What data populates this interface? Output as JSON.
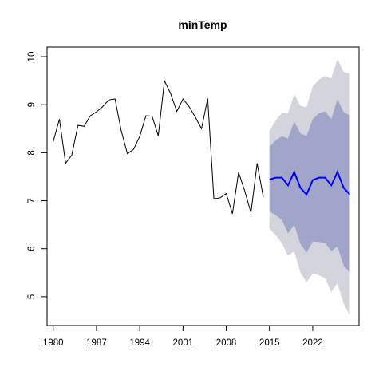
{
  "chart_data": {
    "type": "line",
    "title": "minTemp",
    "xlabel": "",
    "ylabel": "",
    "xlim": [
      1979,
      2029.5
    ],
    "ylim": [
      4.4,
      10.2
    ],
    "x_ticks": [
      1980,
      1987,
      1994,
      2001,
      2008,
      2015,
      2022
    ],
    "y_ticks": [
      5,
      6,
      7,
      8,
      9,
      10
    ],
    "grid": false,
    "colors": {
      "history": "#000000",
      "forecast": "#0000ff",
      "band_outer": "#d4d4dc",
      "band_inner": "#a2a5ca"
    },
    "history": {
      "x": [
        1980,
        1981,
        1982,
        1983,
        1984,
        1985,
        1986,
        1987,
        1988,
        1989,
        1990,
        1991,
        1992,
        1993,
        1994,
        1995,
        1996,
        1997,
        1998,
        1999,
        2000,
        2001,
        2002,
        2003,
        2004,
        2005,
        2006,
        2007,
        2008,
        2009,
        2010,
        2011,
        2012,
        2013,
        2014
      ],
      "y": [
        8.23,
        8.7,
        7.78,
        7.95,
        8.57,
        8.55,
        8.77,
        8.85,
        8.96,
        9.1,
        9.12,
        8.46,
        7.98,
        8.07,
        8.34,
        8.77,
        8.76,
        8.35,
        9.5,
        9.23,
        8.86,
        9.12,
        8.96,
        8.74,
        8.5,
        9.13,
        7.04,
        7.06,
        7.15,
        6.73,
        7.59,
        7.2,
        6.75,
        7.78,
        7.07
      ]
    },
    "forecast": {
      "x": [
        2015,
        2016,
        2017,
        2018,
        2019,
        2020,
        2021,
        2022,
        2023,
        2024,
        2025,
        2026,
        2027,
        2028
      ],
      "y": [
        7.44,
        7.48,
        7.48,
        7.32,
        7.6,
        7.27,
        7.13,
        7.43,
        7.48,
        7.48,
        7.32,
        7.6,
        7.27,
        7.13
      ],
      "lo80": [
        6.78,
        6.7,
        6.6,
        6.32,
        6.5,
        6.1,
        5.92,
        6.15,
        6.14,
        6.12,
        5.95,
        6.05,
        5.65,
        5.5
      ],
      "hi80": [
        8.12,
        8.26,
        8.34,
        8.3,
        8.65,
        8.4,
        8.35,
        8.7,
        8.82,
        8.86,
        8.7,
        9.12,
        8.85,
        8.78
      ],
      "lo95": [
        6.42,
        6.28,
        6.12,
        5.85,
        5.95,
        5.5,
        5.3,
        5.48,
        5.45,
        5.38,
        5.1,
        5.28,
        4.85,
        4.62
      ],
      "hi95": [
        8.45,
        8.67,
        8.83,
        8.82,
        9.22,
        8.98,
        8.95,
        9.38,
        9.52,
        9.6,
        9.55,
        9.95,
        9.68,
        9.65
      ]
    }
  }
}
